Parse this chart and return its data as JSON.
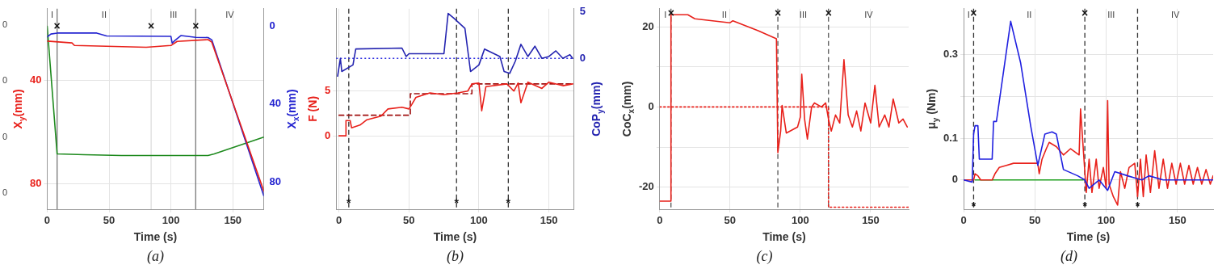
{
  "chart_data": [
    {
      "type": "line",
      "title": "(a)",
      "xlabel": "Time (s)",
      "ylabel": "X$_{y}$(mm)",
      "y2label": "X$_{x}$(mm)",
      "xlim": [
        0,
        175
      ],
      "xticks": [
        0,
        50,
        100,
        150
      ],
      "ylim": [
        90,
        12
      ],
      "yticks": [
        40,
        80
      ],
      "y2lim": [
        94,
        -9
      ],
      "y2ticks": [
        0,
        40,
        80
      ],
      "grid": true,
      "series": [
        {
          "color": "#e8201a",
          "axis": "y",
          "x": [
            0,
            20,
            22,
            80,
            100,
            105,
            130,
            133,
            175
          ],
          "values": [
            24.6,
            25.3,
            26.3,
            27,
            26.3,
            24.7,
            24,
            25,
            82.9
          ]
        },
        {
          "color": "#2424d0",
          "axis": "y2",
          "x": [
            0,
            3,
            8,
            40,
            48,
            100,
            101,
            103,
            108,
            120,
            130,
            133,
            175
          ],
          "values": [
            5.5,
            4,
            3.5,
            3.5,
            5,
            5.2,
            8.7,
            7.4,
            4.8,
            5.7,
            5.8,
            7,
            87
          ]
        },
        {
          "color": "#1e8a1e",
          "axis": "y2",
          "x": [
            0,
            8,
            30,
            60,
            130,
            135,
            175
          ],
          "values": [
            0,
            65.6,
            66,
            66.4,
            66.4,
            65.6,
            57
          ]
        }
      ],
      "ref_lines": [
        {
          "axis": "x",
          "value": 8,
          "color": "#777777",
          "line_style": "solid"
        },
        {
          "axis": "x",
          "value": 84,
          "color": "#dddddd",
          "line_style": "solid"
        },
        {
          "axis": "x",
          "value": 120,
          "color": "#777777",
          "line_style": "solid"
        }
      ],
      "annotations": [
        "I",
        "II",
        "III",
        "IV",
        "0",
        "0",
        "0",
        "0",
        {
          "text": "×",
          "x": 8,
          "y": 19
        },
        {
          "text": "×",
          "x": 84,
          "y": 19
        },
        {
          "text": "×",
          "x": 120,
          "y": 19
        }
      ]
    },
    {
      "type": "line",
      "title": "(b)",
      "xlabel": "Time (s)",
      "ylabel": "F (N)",
      "y2label": "CoP$_{y}$(mm)",
      "xlim": [
        -2,
        168
      ],
      "xticks": [
        0,
        50,
        100,
        150
      ],
      "ylim": [
        -8.2,
        14.2
      ],
      "yticks": [
        0,
        5
      ],
      "y2lim": [
        -16.1,
        5.3
      ],
      "y2ticks": [
        0,
        5
      ],
      "grid": true,
      "series": [
        {
          "color": "#e8201a",
          "axis": "y",
          "x": [
            0,
            5,
            5,
            8,
            9,
            15,
            20,
            30,
            35,
            45,
            50,
            52,
            55,
            65,
            75,
            85,
            92,
            95,
            100,
            102,
            105,
            120,
            125,
            128,
            130,
            135,
            145,
            150,
            160,
            167
          ],
          "values": [
            0,
            0,
            1.7,
            1.7,
            0.9,
            1.2,
            1.8,
            2.2,
            3,
            3.2,
            3,
            3.5,
            4.3,
            4.8,
            4.6,
            4.8,
            5,
            5.8,
            5.9,
            2.8,
            5.5,
            5.8,
            5,
            5.9,
            3.7,
            6,
            5.3,
            6,
            5.6,
            5.8
          ]
        },
        {
          "color": "#a01010",
          "axis": "y",
          "line_style": "dashed",
          "x": [
            0,
            51,
            51,
            95,
            95,
            167
          ],
          "values": [
            2.3,
            2.3,
            4.7,
            4.7,
            5.8,
            5.8
          ]
        },
        {
          "color": "#2424b0",
          "axis": "y2",
          "x": [
            -1,
            1,
            2,
            10,
            12,
            45,
            48,
            50,
            75,
            78,
            82,
            90,
            94,
            100,
            104,
            115,
            118,
            122,
            126,
            130,
            135,
            140,
            145,
            150,
            155,
            160,
            165,
            167
          ],
          "values": [
            -1.9,
            0,
            -1.4,
            -0.7,
            1,
            1.1,
            0.2,
            0.5,
            0.5,
            4.8,
            4.3,
            3.2,
            -1.4,
            -0.7,
            1,
            0.2,
            -1.4,
            -1.6,
            -0.3,
            1.5,
            0.2,
            1.3,
            0,
            0.2,
            0.8,
            0,
            0.4,
            0
          ]
        }
      ],
      "ref_lines": [
        {
          "axis": "x",
          "value": 7,
          "color": "#333333",
          "line_style": "dashed"
        },
        {
          "axis": "x",
          "value": 84,
          "color": "#333333",
          "line_style": "dashed"
        },
        {
          "axis": "x",
          "value": 121,
          "color": "#333333",
          "line_style": "dashed"
        },
        {
          "axis": "y2",
          "value": 0,
          "color": "#3030e0",
          "line_style": "dotted"
        }
      ],
      "annotations": [
        {
          "text": "*",
          "x": 7,
          "y": -7.6
        },
        {
          "text": "*",
          "x": 84,
          "y": -7.6
        },
        {
          "text": "*",
          "x": 121,
          "y": -7.6
        }
      ]
    },
    {
      "type": "line",
      "title": "(c)",
      "xlabel": "Time (s)",
      "ylabel": "CoC$_{x}$(mm)",
      "xlim": [
        0,
        177
      ],
      "xticks": [
        0,
        50,
        100,
        150
      ],
      "ylim": [
        -25.5,
        24.5
      ],
      "yticks": [
        -20,
        {
          "value": -10,
          "label": null
        },
        0,
        {
          "value": 10,
          "label": null
        },
        20
      ],
      "grid": true,
      "series": [
        {
          "color": "#e8201a",
          "x": [
            0,
            8,
            8,
            20,
            25,
            50,
            52,
            70,
            83,
            84,
            86,
            87,
            90,
            98,
            100,
            101,
            103,
            105,
            108,
            110,
            115,
            118,
            120,
            122,
            125,
            128,
            131,
            134,
            137,
            140,
            143,
            146,
            150,
            153,
            156,
            160,
            163,
            166,
            170,
            173,
            176
          ],
          "values": [
            -23.5,
            -23.5,
            23,
            23,
            22,
            21,
            21.5,
            19,
            17,
            -11.4,
            -6,
            0.4,
            -6.5,
            -5,
            -2.5,
            8.2,
            -3,
            -8,
            0,
            1,
            0,
            1,
            -3,
            -6,
            -2,
            -4,
            11.8,
            -2,
            -5,
            -1,
            -6,
            1,
            -4,
            5.4,
            -5,
            -2,
            -5,
            2,
            -4,
            -3,
            -5
          ]
        },
        {
          "color": "#e8201a",
          "line_style": "dotted",
          "x": [
            0,
            120,
            120,
            177
          ],
          "values": [
            0,
            0,
            -25,
            -25
          ]
        }
      ],
      "ref_lines": [
        {
          "axis": "x",
          "value": 8,
          "color": "#555555",
          "line_style": "dashed"
        },
        {
          "axis": "x",
          "value": 84,
          "color": "#555555",
          "line_style": "dashed"
        },
        {
          "axis": "x",
          "value": 120,
          "color": "#555555",
          "line_style": "dashed"
        }
      ],
      "annotations": [
        "I",
        "II",
        "III",
        "IV",
        {
          "text": "×",
          "x": 8,
          "y": 23.3
        },
        {
          "text": "×",
          "x": 84,
          "y": 23.3
        },
        {
          "text": "×",
          "x": 120,
          "y": 23.3
        }
      ]
    },
    {
      "type": "line",
      "title": "(d)",
      "xlabel": "Time (s)",
      "ylabel": "μ$_{y}$ (Nm)",
      "xlim": [
        0,
        175
      ],
      "xticks": [
        0,
        50,
        100,
        150
      ],
      "ylim": [
        -0.07,
        0.41
      ],
      "yticks": [
        0,
        0.1,
        {
          "value": 0.2,
          "label": null
        },
        0.3
      ],
      "grid": true,
      "series": [
        {
          "color": "#2020e0",
          "x": [
            0,
            6,
            7,
            8,
            10,
            11,
            20,
            21,
            23,
            33,
            40,
            47,
            52,
            57,
            62,
            65,
            70,
            80,
            85,
            88,
            95,
            101,
            106,
            115,
            120,
            125,
            130,
            140,
            175
          ],
          "values": [
            0,
            -0.005,
            0.11,
            0.13,
            0.13,
            0.05,
            0.05,
            0.14,
            0.14,
            0.38,
            0.28,
            0.13,
            0.035,
            0.11,
            0.115,
            0.11,
            0.025,
            0.01,
            0,
            -0.02,
            0,
            -0.025,
            0.02,
            0.01,
            0.005,
            0,
            0.01,
            0,
            0
          ]
        },
        {
          "color": "#e8201a",
          "x": [
            0,
            7,
            8,
            10,
            12,
            20,
            22,
            25,
            30,
            35,
            52,
            53,
            55,
            58,
            60,
            65,
            70,
            75,
            81,
            82,
            86,
            88,
            90,
            93,
            95,
            98,
            100,
            101,
            102,
            105,
            108,
            110,
            113,
            116,
            120,
            122,
            124,
            126,
            128,
            131,
            134,
            137,
            140,
            143,
            146,
            149,
            152,
            155,
            158,
            161,
            164,
            167,
            170,
            173,
            175
          ],
          "values": [
            0,
            0,
            0.015,
            0.01,
            0,
            0,
            0.015,
            0.03,
            0.035,
            0.04,
            0.04,
            0.015,
            0.05,
            0.075,
            0.09,
            0.08,
            0.06,
            0.075,
            0.06,
            0.17,
            -0.03,
            0.05,
            -0.03,
            0.05,
            -0.02,
            0.03,
            -0.02,
            0.19,
            -0.01,
            -0.04,
            -0.06,
            0.02,
            -0.02,
            0.03,
            0.04,
            -0.04,
            0.05,
            -0.04,
            0.06,
            -0.03,
            0.07,
            -0.02,
            0.05,
            -0.02,
            0.04,
            -0.01,
            0.04,
            -0.01,
            0.035,
            -0.01,
            0.03,
            -0.01,
            0.025,
            -0.01,
            0.01
          ]
        },
        {
          "color": "#20a020",
          "x": [
            8,
            84
          ],
          "values": [
            0,
            0
          ]
        }
      ],
      "ref_lines": [
        {
          "axis": "x",
          "value": 7,
          "color": "#333333",
          "line_style": "dashed"
        },
        {
          "axis": "x",
          "value": 85,
          "color": "#333333",
          "line_style": "dashed"
        },
        {
          "axis": "x",
          "value": 122,
          "color": "#333333",
          "line_style": "dashed"
        }
      ],
      "annotations": [
        "I",
        "II",
        "III",
        "IV",
        {
          "text": "×",
          "x": 7,
          "y": 0.398
        },
        {
          "text": "×",
          "x": 85,
          "y": 0.398
        },
        {
          "text": "*",
          "x": 7,
          "y": -0.065
        },
        {
          "text": "*",
          "x": 85,
          "y": -0.065
        },
        {
          "text": "*",
          "x": 122,
          "y": -0.065
        }
      ]
    }
  ]
}
